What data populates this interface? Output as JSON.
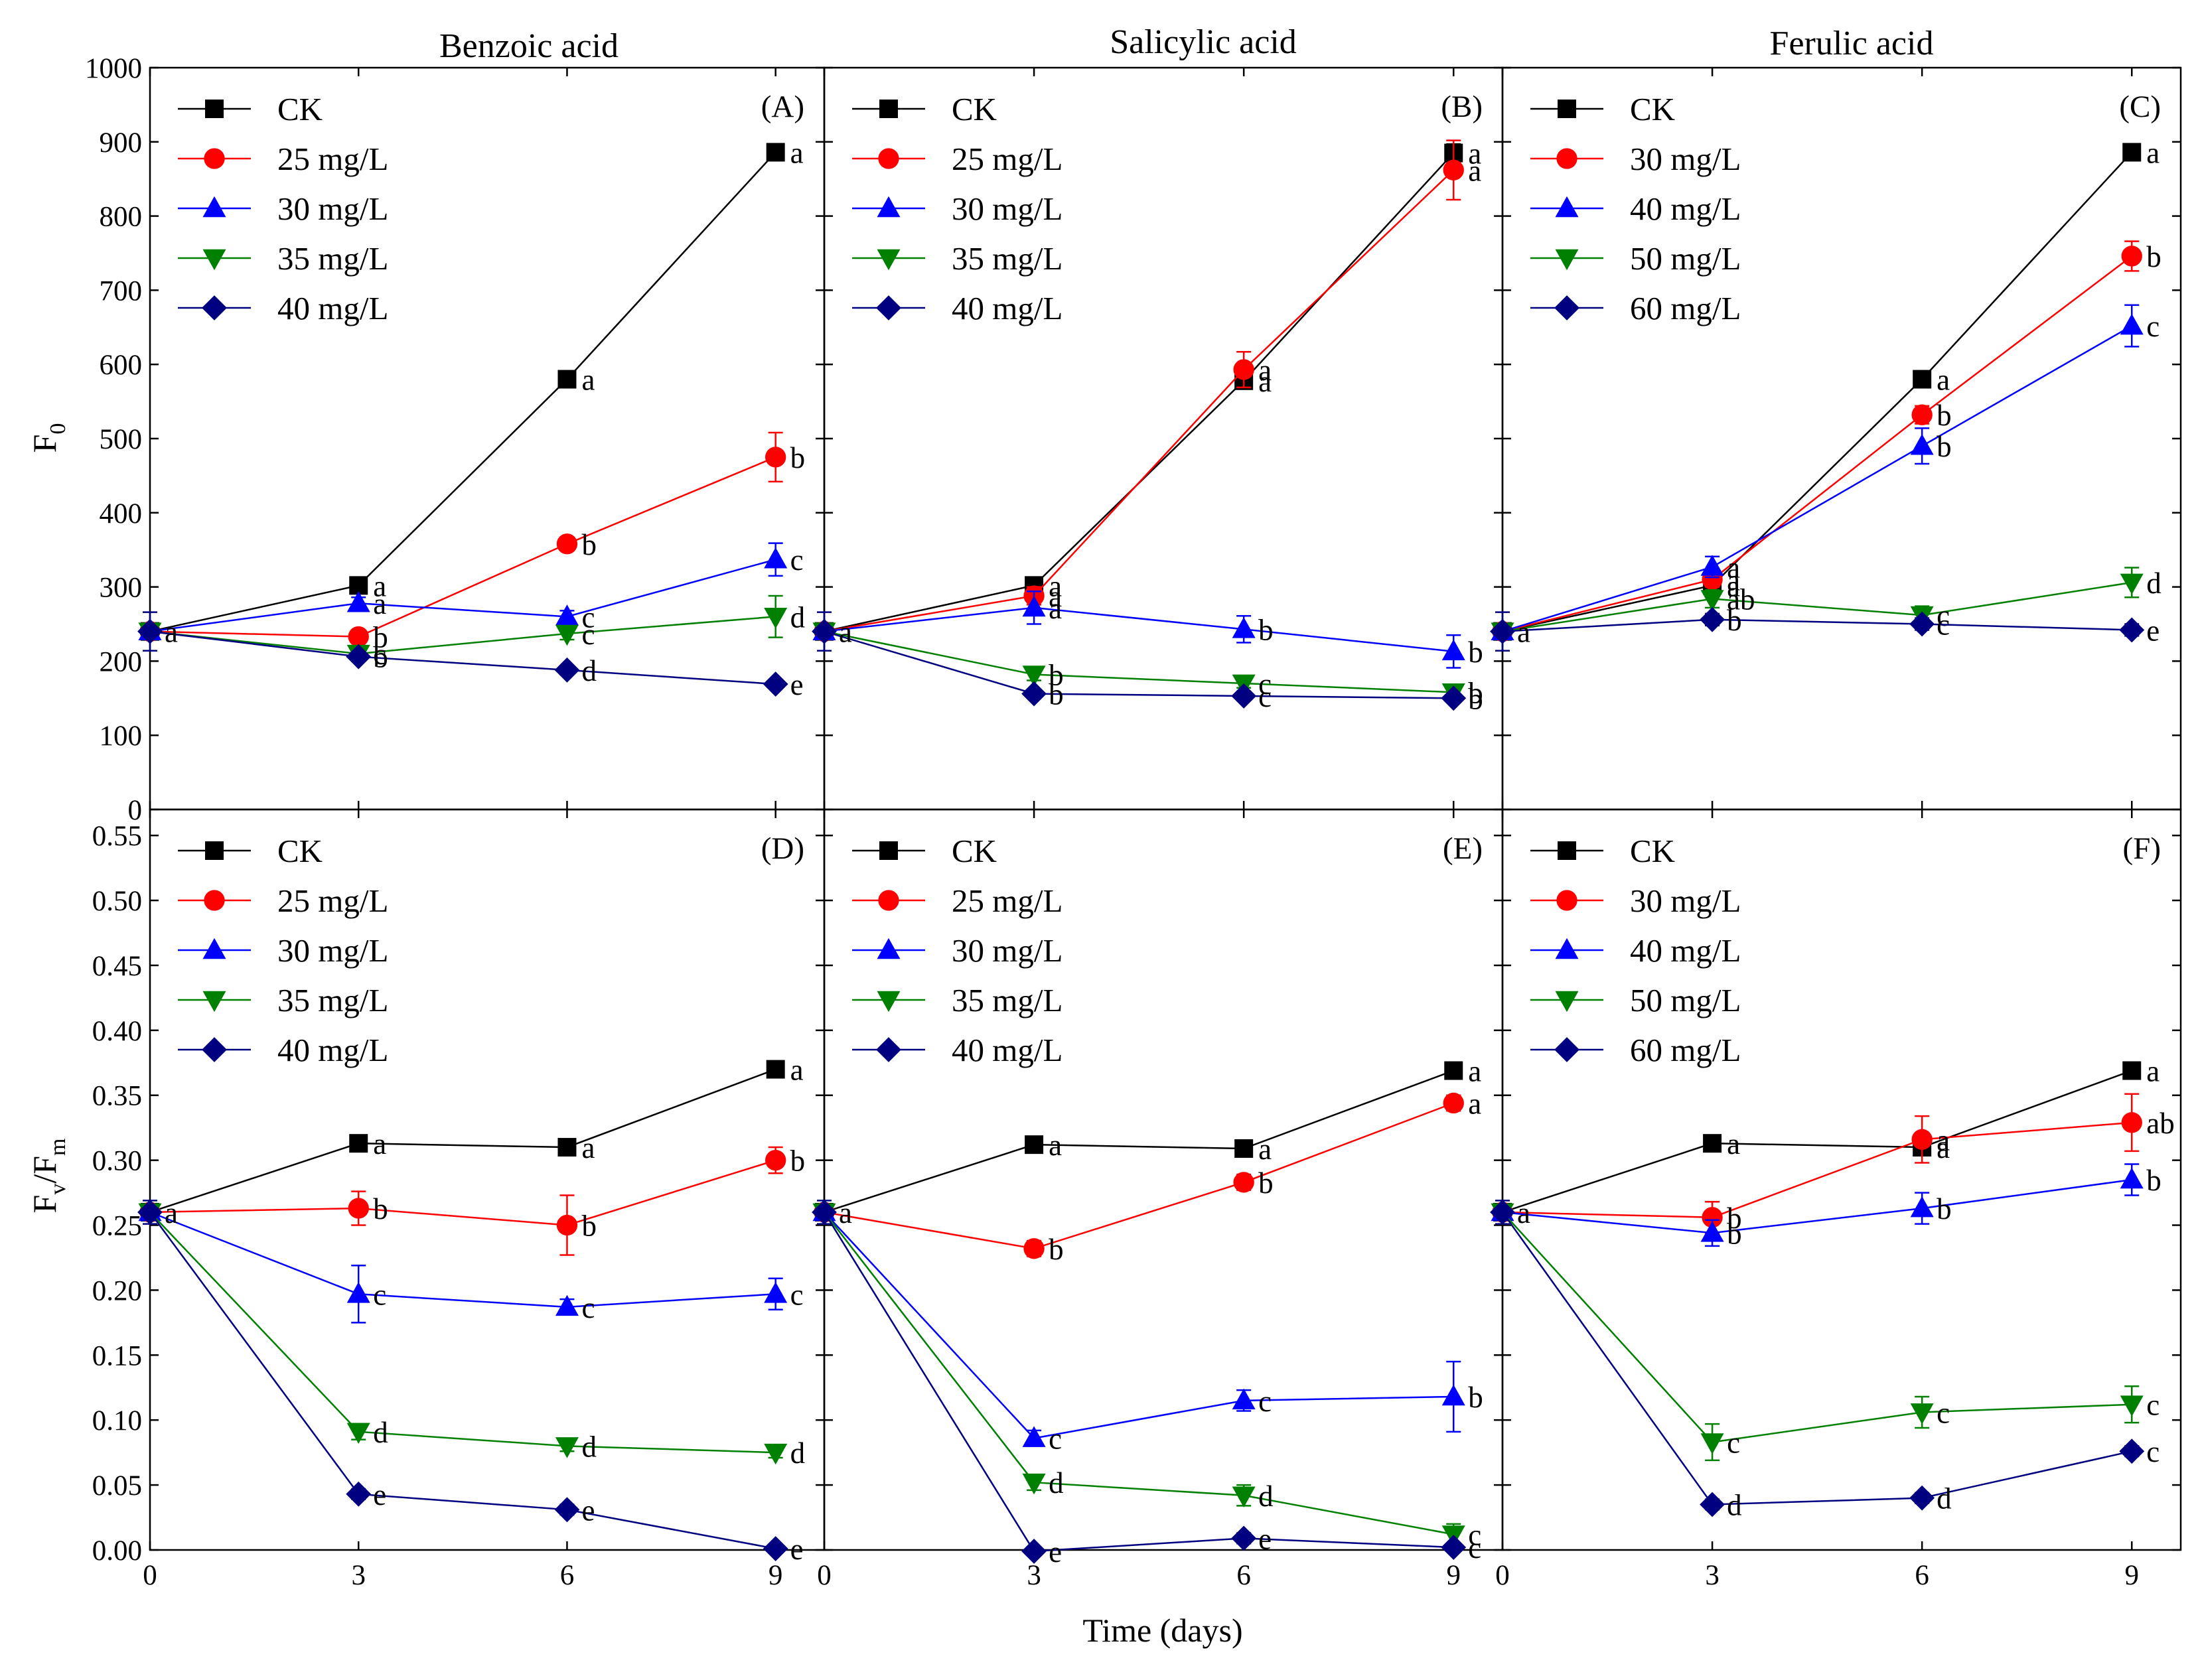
{
  "chart_data": {
    "type": "line",
    "x_label": "Time (days)",
    "x_ticks": [
      "0",
      "3",
      "6",
      "9"
    ],
    "x": [
      0,
      3,
      6,
      9
    ],
    "xlim": [
      0,
      9.7
    ],
    "rows": [
      {
        "ylabel_main": "F",
        "ylabel_sub": "0",
        "ylim": [
          0,
          1000
        ],
        "yticks": [
          "0",
          "100",
          "200",
          "300",
          "400",
          "500",
          "600",
          "700",
          "800",
          "900",
          "1000"
        ]
      },
      {
        "ylabel_main": "F",
        "ylabel_sub": "v",
        "ylabel_slash": "/",
        "ylabel_main2": "F",
        "ylabel_sub2": "m",
        "ylim": [
          0,
          0.57
        ],
        "yticks": [
          "0.00",
          "0.05",
          "0.10",
          "0.15",
          "0.20",
          "0.25",
          "0.30",
          "0.35",
          "0.40",
          "0.45",
          "0.50",
          "0.55"
        ]
      }
    ],
    "columns": [
      {
        "title": "Benzoic acid"
      },
      {
        "title": "Salicylic acid"
      },
      {
        "title": "Ferulic acid"
      }
    ],
    "colors": [
      "#000000",
      "#ff0000",
      "#0000ff",
      "#008000",
      "#000080"
    ],
    "markers": [
      "square",
      "circle",
      "triangle-up",
      "triangle-down",
      "diamond"
    ],
    "panels": [
      {
        "label": "(A)",
        "row": 0,
        "col": 0,
        "series": [
          {
            "name": "CK",
            "values": [
              240,
              302,
              580,
              886
            ],
            "err": [
              0,
              6,
              8,
              8
            ],
            "sig": [
              "",
              "a",
              "a",
              "a"
            ]
          },
          {
            "name": "25 mg/L",
            "values": [
              240,
              233,
              358,
              475
            ],
            "err": [
              0,
              8,
              8,
              33
            ],
            "sig": [
              "",
              "b",
              "b",
              "b"
            ]
          },
          {
            "name": "30 mg/L",
            "values": [
              240,
              278,
              260,
              337
            ],
            "err": [
              0,
              8,
              8,
              22
            ],
            "sig": [
              "",
              "a",
              "c",
              "c"
            ]
          },
          {
            "name": "35 mg/L",
            "values": [
              240,
              210,
              237,
              260
            ],
            "err": [
              0,
              6,
              8,
              28
            ],
            "sig": [
              "",
              "c",
              "c",
              "d"
            ]
          },
          {
            "name": "40 mg/L",
            "values": [
              240,
              206,
              188,
              169
            ],
            "err": [
              26,
              6,
              6,
              6
            ],
            "sig": [
              "a",
              "b",
              "d",
              "e"
            ]
          }
        ]
      },
      {
        "label": "(B)",
        "row": 0,
        "col": 1,
        "series": [
          {
            "name": "CK",
            "values": [
              240,
              302,
              578,
              885
            ],
            "err": [
              0,
              6,
              8,
              12
            ],
            "sig": [
              "",
              "a",
              "a",
              "a"
            ]
          },
          {
            "name": "25 mg/L",
            "values": [
              240,
              288,
              593,
              862
            ],
            "err": [
              0,
              12,
              24,
              40
            ],
            "sig": [
              "",
              "a",
              "a",
              "a"
            ]
          },
          {
            "name": "30 mg/L",
            "values": [
              240,
              272,
              243,
              213
            ],
            "err": [
              0,
              22,
              18,
              22
            ],
            "sig": [
              "",
              "a",
              "b",
              "b"
            ]
          },
          {
            "name": "35 mg/L",
            "values": [
              240,
              182,
              170,
              158
            ],
            "err": [
              0,
              8,
              6,
              6
            ],
            "sig": [
              "",
              "b",
              "c",
              "b"
            ]
          },
          {
            "name": "40 mg/L",
            "values": [
              240,
              156,
              153,
              150
            ],
            "err": [
              26,
              6,
              6,
              6
            ],
            "sig": [
              "a",
              "b",
              "c",
              "b"
            ]
          }
        ]
      },
      {
        "label": "(C)",
        "row": 0,
        "col": 2,
        "series": [
          {
            "name": "CK",
            "values": [
              240,
              302,
              580,
              886
            ],
            "err": [
              0,
              6,
              8,
              8
            ],
            "sig": [
              "",
              "a",
              "a",
              "a"
            ]
          },
          {
            "name": "30 mg/L",
            "values": [
              240,
              310,
              532,
              746
            ],
            "err": [
              0,
              10,
              12,
              20
            ],
            "sig": [
              "",
              "a",
              "b",
              "b"
            ]
          },
          {
            "name": "40 mg/L",
            "values": [
              240,
              327,
              490,
              652
            ],
            "err": [
              0,
              14,
              24,
              28
            ],
            "sig": [
              "",
              "a",
              "b",
              "c"
            ]
          },
          {
            "name": "50 mg/L",
            "values": [
              240,
              284,
              262,
              306
            ],
            "err": [
              0,
              12,
              12,
              20
            ],
            "sig": [
              "",
              "ab",
              "c",
              "d"
            ]
          },
          {
            "name": "60 mg/L",
            "values": [
              240,
              256,
              250,
              242
            ],
            "err": [
              26,
              8,
              8,
              8
            ],
            "sig": [
              "a",
              "b",
              "c",
              "e"
            ]
          }
        ]
      },
      {
        "label": "(D)",
        "row": 1,
        "col": 0,
        "series": [
          {
            "name": "CK",
            "values": [
              0.26,
              0.313,
              0.31,
              0.37
            ],
            "err": [
              0,
              0.004,
              0.004,
              0.004
            ],
            "sig": [
              "",
              "a",
              "a",
              "a"
            ]
          },
          {
            "name": "25 mg/L",
            "values": [
              0.26,
              0.263,
              0.25,
              0.3
            ],
            "err": [
              0,
              0.013,
              0.023,
              0.01
            ],
            "sig": [
              "",
              "b",
              "b",
              "b"
            ]
          },
          {
            "name": "30 mg/L",
            "values": [
              0.26,
              0.197,
              0.187,
              0.197
            ],
            "err": [
              0,
              0.022,
              0.006,
              0.012
            ],
            "sig": [
              "",
              "c",
              "c",
              "c"
            ]
          },
          {
            "name": "35 mg/L",
            "values": [
              0.26,
              0.091,
              0.08,
              0.075
            ],
            "err": [
              0,
              0.006,
              0.004,
              0.004
            ],
            "sig": [
              "",
              "d",
              "d",
              "d"
            ]
          },
          {
            "name": "40 mg/L",
            "values": [
              0.26,
              0.043,
              0.031,
              0.001
            ],
            "err": [
              0.009,
              0.004,
              0.004,
              0.003
            ],
            "sig": [
              "a",
              "e",
              "e",
              "e"
            ]
          }
        ]
      },
      {
        "label": "(E)",
        "row": 1,
        "col": 1,
        "series": [
          {
            "name": "CK",
            "values": [
              0.26,
              0.312,
              0.309,
              0.369
            ],
            "err": [
              0,
              0.004,
              0.004,
              0.004
            ],
            "sig": [
              "",
              "a",
              "a",
              "a"
            ]
          },
          {
            "name": "25 mg/L",
            "values": [
              0.26,
              0.232,
              0.283,
              0.344
            ],
            "err": [
              0,
              0.006,
              0.006,
              0.006
            ],
            "sig": [
              "",
              "b",
              "b",
              "a"
            ]
          },
          {
            "name": "30 mg/L",
            "values": [
              0.26,
              0.086,
              0.115,
              0.118
            ],
            "err": [
              0,
              0.006,
              0.008,
              0.027
            ],
            "sig": [
              "",
              "c",
              "c",
              "b"
            ]
          },
          {
            "name": "35 mg/L",
            "values": [
              0.26,
              0.052,
              0.042,
              0.012
            ],
            "err": [
              0,
              0.006,
              0.008,
              0.008
            ],
            "sig": [
              "",
              "d",
              "d",
              "c"
            ]
          },
          {
            "name": "40 mg/L",
            "values": [
              0.26,
              -0.001,
              0.009,
              0.002
            ],
            "err": [
              0.009,
              0.003,
              0.004,
              0.003
            ],
            "sig": [
              "a",
              "e",
              "e",
              "c"
            ]
          }
        ]
      },
      {
        "label": "(F)",
        "row": 1,
        "col": 2,
        "series": [
          {
            "name": "CK",
            "values": [
              0.26,
              0.313,
              0.31,
              0.369
            ],
            "err": [
              0,
              0.004,
              0.004,
              0.004
            ],
            "sig": [
              "",
              "a",
              "a",
              "a"
            ]
          },
          {
            "name": "30 mg/L",
            "values": [
              0.26,
              0.256,
              0.316,
              0.329
            ],
            "err": [
              0,
              0.012,
              0.018,
              0.022
            ],
            "sig": [
              "",
              "b",
              "a",
              "ab"
            ]
          },
          {
            "name": "40 mg/L",
            "values": [
              0.26,
              0.244,
              0.263,
              0.285
            ],
            "err": [
              0,
              0.01,
              0.012,
              0.012
            ],
            "sig": [
              "",
              "b",
              "b",
              "b"
            ]
          },
          {
            "name": "50 mg/L",
            "values": [
              0.26,
              0.083,
              0.106,
              0.112
            ],
            "err": [
              0,
              0.014,
              0.012,
              0.014
            ],
            "sig": [
              "",
              "c",
              "c",
              "c"
            ]
          },
          {
            "name": "60 mg/L",
            "values": [
              0.26,
              0.035,
              0.04,
              0.076
            ],
            "err": [
              0.009,
              0.004,
              0.004,
              0.004
            ],
            "sig": [
              "a",
              "d",
              "d",
              "c"
            ]
          }
        ]
      }
    ]
  }
}
